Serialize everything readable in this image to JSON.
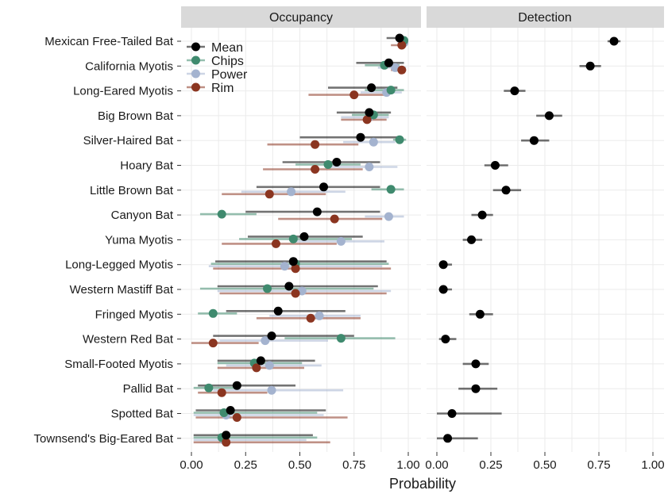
{
  "chart_data": {
    "type": "dot-interval",
    "xlabel": "Probability",
    "xlim": [
      0,
      1
    ],
    "xticks": [
      "0.00",
      "0.25",
      "0.50",
      "0.75",
      "1.00"
    ],
    "xtick_values": [
      0,
      0.25,
      0.5,
      0.75,
      1.0
    ],
    "legend_position": "top-left inside Occupancy panel",
    "colors": {
      "Mean": "#000000",
      "Chips": "#3f8a6e",
      "Power": "#a4b3cf",
      "Rim": "#8b3520"
    },
    "categories": [
      "Mexican Free-Tailed Bat",
      "California Myotis",
      "Long-Eared Myotis",
      "Big Brown Bat",
      "Silver-Haired Bat",
      "Hoary Bat",
      "Little Brown Bat",
      "Canyon Bat",
      "Yuma Myotis",
      "Long-Legged Myotis",
      "Western Mastiff Bat",
      "Fringed Myotis",
      "Western Red Bat",
      "Small-Footed Myotis",
      "Pallid Bat",
      "Spotted Bat",
      "Townsend's Big-Eared Bat"
    ],
    "panels": [
      {
        "title": "Occupancy",
        "series": [
          {
            "name": "Mean",
            "points": [
              {
                "est": 0.96,
                "lo": 0.9,
                "hi": 0.99
              },
              {
                "est": 0.91,
                "lo": 0.76,
                "hi": 0.98
              },
              {
                "est": 0.83,
                "lo": 0.63,
                "hi": 0.95
              },
              {
                "est": 0.82,
                "lo": 0.67,
                "hi": 0.92
              },
              {
                "est": 0.78,
                "lo": 0.5,
                "hi": 0.95
              },
              {
                "est": 0.67,
                "lo": 0.42,
                "hi": 0.87
              },
              {
                "est": 0.61,
                "lo": 0.3,
                "hi": 0.87
              },
              {
                "est": 0.58,
                "lo": 0.25,
                "hi": 0.87
              },
              {
                "est": 0.52,
                "lo": 0.26,
                "hi": 0.79
              },
              {
                "est": 0.47,
                "lo": 0.11,
                "hi": 0.9
              },
              {
                "est": 0.45,
                "lo": 0.12,
                "hi": 0.86
              },
              {
                "est": 0.4,
                "lo": 0.16,
                "hi": 0.71
              },
              {
                "est": 0.37,
                "lo": 0.1,
                "hi": 0.75
              },
              {
                "est": 0.32,
                "lo": 0.12,
                "hi": 0.57
              },
              {
                "est": 0.21,
                "lo": 0.03,
                "hi": 0.48
              },
              {
                "est": 0.18,
                "lo": 0.02,
                "hi": 0.62
              },
              {
                "est": 0.16,
                "lo": 0.01,
                "hi": 0.56
              }
            ]
          },
          {
            "name": "Chips",
            "points": [
              {
                "est": 0.98,
                "lo": 0.95,
                "hi": 1.0
              },
              {
                "est": 0.89,
                "lo": 0.8,
                "hi": 0.96
              },
              {
                "est": 0.92,
                "lo": 0.8,
                "hi": 0.98
              },
              {
                "est": 0.84,
                "lo": 0.74,
                "hi": 0.91
              },
              {
                "est": 0.96,
                "lo": 0.93,
                "hi": 0.99
              },
              {
                "est": 0.63,
                "lo": 0.48,
                "hi": 0.78
              },
              {
                "est": 0.92,
                "lo": 0.83,
                "hi": 0.98
              },
              {
                "est": 0.14,
                "lo": 0.04,
                "hi": 0.3
              },
              {
                "est": 0.47,
                "lo": 0.22,
                "hi": 0.74
              },
              {
                "est": 0.48,
                "lo": 0.09,
                "hi": 0.91
              },
              {
                "est": 0.35,
                "lo": 0.04,
                "hi": 0.84
              },
              {
                "est": 0.1,
                "lo": 0.03,
                "hi": 0.21
              },
              {
                "est": 0.69,
                "lo": 0.43,
                "hi": 0.94
              },
              {
                "est": 0.29,
                "lo": 0.12,
                "hi": 0.51
              },
              {
                "est": 0.08,
                "lo": 0.01,
                "hi": 0.2
              },
              {
                "est": 0.15,
                "lo": 0.01,
                "hi": 0.58
              },
              {
                "est": 0.14,
                "lo": 0.01,
                "hi": 0.58
              }
            ]
          },
          {
            "name": "Power",
            "points": [
              {
                "est": 0.98,
                "lo": 0.95,
                "hi": 1.0
              },
              {
                "est": 0.94,
                "lo": 0.86,
                "hi": 0.99
              },
              {
                "est": 0.9,
                "lo": 0.78,
                "hi": 0.97
              },
              {
                "est": 0.82,
                "lo": 0.69,
                "hi": 0.91
              },
              {
                "est": 0.84,
                "lo": 0.7,
                "hi": 0.94
              },
              {
                "est": 0.82,
                "lo": 0.62,
                "hi": 0.95
              },
              {
                "est": 0.46,
                "lo": 0.23,
                "hi": 0.71
              },
              {
                "est": 0.91,
                "lo": 0.8,
                "hi": 0.98
              },
              {
                "est": 0.69,
                "lo": 0.46,
                "hi": 0.89
              },
              {
                "est": 0.43,
                "lo": 0.08,
                "hi": 0.88
              },
              {
                "est": 0.51,
                "lo": 0.12,
                "hi": 0.92
              },
              {
                "est": 0.59,
                "lo": 0.36,
                "hi": 0.78
              },
              {
                "est": 0.34,
                "lo": 0.13,
                "hi": 0.63
              },
              {
                "est": 0.36,
                "lo": 0.16,
                "hi": 0.6
              },
              {
                "est": 0.37,
                "lo": 0.1,
                "hi": 0.7
              },
              {
                "est": 0.16,
                "lo": 0.01,
                "hi": 0.61
              },
              {
                "est": 0.15,
                "lo": 0.01,
                "hi": 0.53
              }
            ]
          },
          {
            "name": "Rim",
            "points": [
              {
                "est": 0.97,
                "lo": 0.92,
                "hi": 0.99
              },
              {
                "est": 0.97,
                "lo": 0.92,
                "hi": 0.99
              },
              {
                "est": 0.75,
                "lo": 0.54,
                "hi": 0.89
              },
              {
                "est": 0.81,
                "lo": 0.69,
                "hi": 0.9
              },
              {
                "est": 0.57,
                "lo": 0.35,
                "hi": 0.77
              },
              {
                "est": 0.57,
                "lo": 0.33,
                "hi": 0.79
              },
              {
                "est": 0.36,
                "lo": 0.14,
                "hi": 0.62
              },
              {
                "est": 0.66,
                "lo": 0.4,
                "hi": 0.88
              },
              {
                "est": 0.39,
                "lo": 0.14,
                "hi": 0.67
              },
              {
                "est": 0.48,
                "lo": 0.1,
                "hi": 0.92
              },
              {
                "est": 0.48,
                "lo": 0.13,
                "hi": 0.9
              },
              {
                "est": 0.55,
                "lo": 0.3,
                "hi": 0.78
              },
              {
                "est": 0.1,
                "lo": 0.0,
                "hi": 0.31
              },
              {
                "est": 0.3,
                "lo": 0.12,
                "hi": 0.52
              },
              {
                "est": 0.14,
                "lo": 0.03,
                "hi": 0.35
              },
              {
                "est": 0.21,
                "lo": 0.02,
                "hi": 0.72
              },
              {
                "est": 0.16,
                "lo": 0.01,
                "hi": 0.64
              }
            ]
          }
        ]
      },
      {
        "title": "Detection",
        "series": [
          {
            "name": "Mean",
            "points": [
              {
                "est": 0.82,
                "lo": 0.79,
                "hi": 0.85
              },
              {
                "est": 0.71,
                "lo": 0.66,
                "hi": 0.76
              },
              {
                "est": 0.36,
                "lo": 0.31,
                "hi": 0.41
              },
              {
                "est": 0.52,
                "lo": 0.46,
                "hi": 0.58
              },
              {
                "est": 0.45,
                "lo": 0.39,
                "hi": 0.52
              },
              {
                "est": 0.27,
                "lo": 0.22,
                "hi": 0.33
              },
              {
                "est": 0.32,
                "lo": 0.26,
                "hi": 0.39
              },
              {
                "est": 0.21,
                "lo": 0.16,
                "hi": 0.26
              },
              {
                "est": 0.16,
                "lo": 0.12,
                "hi": 0.21
              },
              {
                "est": 0.03,
                "lo": 0.01,
                "hi": 0.07
              },
              {
                "est": 0.03,
                "lo": 0.01,
                "hi": 0.07
              },
              {
                "est": 0.2,
                "lo": 0.15,
                "hi": 0.26
              },
              {
                "est": 0.04,
                "lo": 0.01,
                "hi": 0.09
              },
              {
                "est": 0.18,
                "lo": 0.12,
                "hi": 0.24
              },
              {
                "est": 0.18,
                "lo": 0.1,
                "hi": 0.28
              },
              {
                "est": 0.07,
                "lo": 0.0,
                "hi": 0.3
              },
              {
                "est": 0.05,
                "lo": 0.0,
                "hi": 0.19
              }
            ]
          }
        ]
      }
    ]
  }
}
